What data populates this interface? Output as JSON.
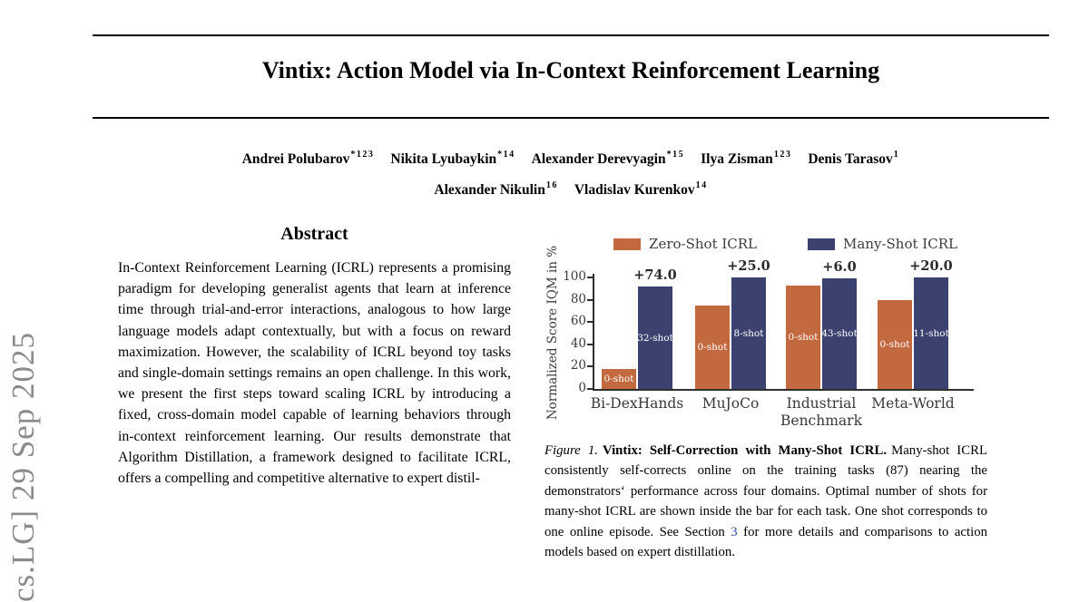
{
  "watermark": {
    "text": "cs.LG] 29 Sep 2025"
  },
  "paper": {
    "title": "Vintix: Action Model via In-Context Reinforcement Learning",
    "authors": {
      "lines": [
        [
          {
            "name": "Andrei Polubarov",
            "sup": "*123"
          },
          {
            "name": "Nikita Lyubaykin",
            "sup": "*14"
          },
          {
            "name": "Alexander Derevyagin",
            "sup": "*15"
          },
          {
            "name": "Ilya Zisman",
            "sup": "123"
          },
          {
            "name": "Denis Tarasov",
            "sup": "1"
          }
        ],
        [
          {
            "name": "Alexander Nikulin",
            "sup": "16"
          },
          {
            "name": "Vladislav Kurenkov",
            "sup": "14"
          }
        ]
      ]
    },
    "abstract": {
      "heading": "Abstract",
      "text": "In-Context Reinforcement Learning (ICRL) represents a promising paradigm for developing generalist agents that learn at inference time through trial-and-error interactions, analogous to how large language models adapt contextually, but with a focus on reward maximization. However, the scalability of ICRL beyond toy tasks and single-domain settings remains an open challenge. In this work, we present the first steps toward scaling ICRL by introducing a fixed, cross-domain model capable of learning behaviors through in-context reinforcement learning. Our results demonstrate that Algorithm Distillation, a framework designed to facilitate ICRL, offers a compelling and competitive alternative to expert distil-"
    },
    "figure_caption": {
      "label": "Figure 1.",
      "bold": "Vintix: Self-Correction with Many-Shot ICRL.",
      "body_before_link": "Many-shot ICRL consistently self-corrects online on the training tasks (87) nearing the demonstrators‘ performance across four domains. Optimal number of shots for many-shot ICRL are shown inside the bar for each task. One shot corresponds to one online episode. See Section ",
      "link": "3",
      "body_after_link": " for more details and comparisons to action models based on expert distillation."
    }
  },
  "chart_data": {
    "type": "bar",
    "title": "",
    "xlabel": "",
    "ylabel": "Normalized Score IQM in %",
    "ylim": [
      0,
      100
    ],
    "yticks": [
      0,
      20,
      40,
      60,
      80,
      100
    ],
    "grid": false,
    "legend_position": "top",
    "categories": [
      "Bi-DexHands",
      "MuJoCo",
      "Industrial\nBenchmark",
      "Meta-World"
    ],
    "series": [
      {
        "name": "Zero-Shot ICRL",
        "color": "#C2693F",
        "values": [
          18,
          75,
          93,
          80
        ],
        "bar_labels": [
          "0-shot",
          "0-shot",
          "0-shot",
          "0-shot"
        ]
      },
      {
        "name": "Many-Shot ICRL",
        "color": "#3B4270",
        "values": [
          92,
          100,
          99,
          100
        ],
        "bar_labels": [
          "32-shot",
          "8-shot",
          "43-shot",
          "11-shot"
        ]
      }
    ],
    "annotations": [
      "+74.0",
      "+25.0",
      "+6.0",
      "+20.0"
    ]
  }
}
